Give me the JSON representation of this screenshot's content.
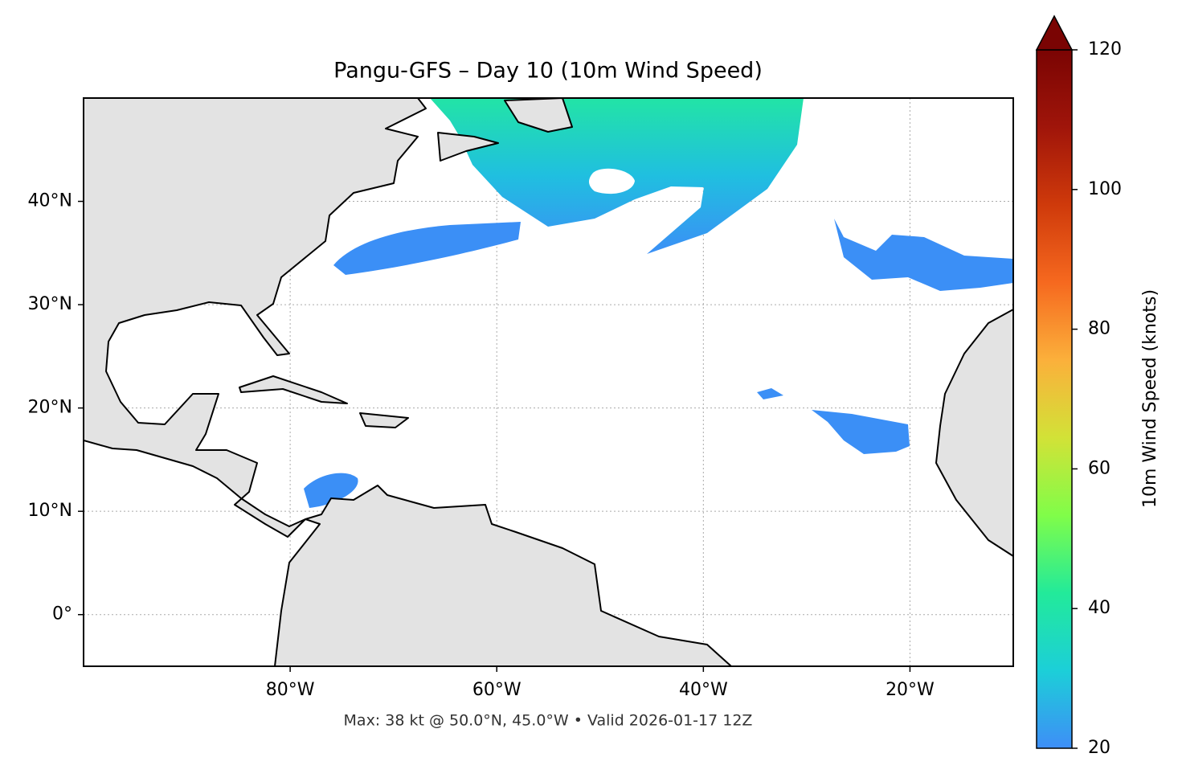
{
  "map": {
    "title": "Pangu-GFS – Day 10 (10m Wind Speed)",
    "footer": "Max: 38 kt @ 50.0°N, 45.0°W • Valid 2026-01-17 12Z",
    "lonlim": [
      -100,
      -10
    ],
    "latlim": [
      -5,
      50
    ],
    "lonticks": [
      {
        "value": -80,
        "label": "80°W"
      },
      {
        "value": -60,
        "label": "60°W"
      },
      {
        "value": -40,
        "label": "40°W"
      },
      {
        "value": -20,
        "label": "20°W"
      }
    ],
    "latticks": [
      {
        "value": 0,
        "label": "0°"
      },
      {
        "value": 10,
        "label": "10°N"
      },
      {
        "value": 20,
        "label": "20°N"
      },
      {
        "value": 30,
        "label": "30°N"
      },
      {
        "value": 40,
        "label": "40°N"
      }
    ],
    "grid": true,
    "colorbar": {
      "label": "10m Wind Speed (knots)",
      "lim": [
        20,
        120
      ],
      "ticks": [
        20,
        40,
        60,
        80,
        100,
        120
      ],
      "colors": [
        "#3e8ef7",
        "#1ccfd8",
        "#22ea9a",
        "#80fd49",
        "#d2e237",
        "#fbb03b",
        "#f6691f",
        "#cf3a0b",
        "#a0150a",
        "#7a0403"
      ]
    }
  }
}
